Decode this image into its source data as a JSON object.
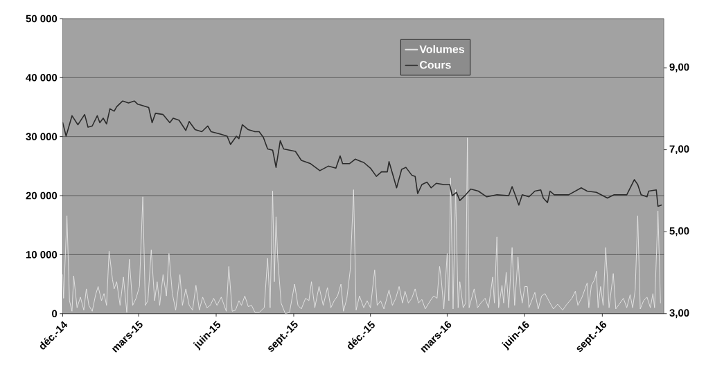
{
  "chart_data": {
    "type": "line",
    "xlim": [
      "2014-12-01",
      "2016-11-13"
    ],
    "xticks": [
      {
        "value": "2014-12-01",
        "label": "déc.-14"
      },
      {
        "value": "2015-03-01",
        "label": "mars-15"
      },
      {
        "value": "2015-06-01",
        "label": "juin-15"
      },
      {
        "value": "2015-09-01",
        "label": "sept.-15"
      },
      {
        "value": "2015-12-01",
        "label": "déc.-15"
      },
      {
        "value": "2016-03-01",
        "label": "mars-16"
      },
      {
        "value": "2016-06-01",
        "label": "juin-16"
      },
      {
        "value": "2016-09-01",
        "label": "sept.-16"
      }
    ],
    "ylim": [
      0,
      50000
    ],
    "yticks": [
      {
        "value": 0,
        "label": "0"
      },
      {
        "value": 10000,
        "label": "10 000"
      },
      {
        "value": 20000,
        "label": "20 000"
      },
      {
        "value": 30000,
        "label": "30 000"
      },
      {
        "value": 40000,
        "label": "40 000"
      },
      {
        "value": 50000,
        "label": "50 000"
      }
    ],
    "y2lim": [
      3,
      10.2
    ],
    "y2ticks": [
      {
        "value": 3,
        "label": "3,00"
      },
      {
        "value": 5,
        "label": "5,00"
      },
      {
        "value": 7,
        "label": "7,00"
      },
      {
        "value": 9,
        "label": "9,00"
      }
    ],
    "grid": "y",
    "legend": "top",
    "series": [
      {
        "name": "Volumes",
        "color": "#e6e6e6",
        "axis": "y",
        "x": [
          "2014-12-01",
          "2014-12-02",
          "2014-12-06",
          "2014-12-09",
          "2014-12-12",
          "2014-12-14",
          "2014-12-18",
          "2014-12-22",
          "2014-12-26",
          "2014-12-29",
          "2015-01-01",
          "2015-01-05",
          "2015-01-09",
          "2015-01-12",
          "2015-01-16",
          "2015-01-19",
          "2015-01-22",
          "2015-01-25",
          "2015-01-29",
          "2015-01-31",
          "2015-02-03",
          "2015-02-07",
          "2015-02-11",
          "2015-02-15",
          "2015-02-18",
          "2015-02-22",
          "2015-02-26",
          "2015-03-02",
          "2015-03-06",
          "2015-03-09",
          "2015-03-12",
          "2015-03-16",
          "2015-03-20",
          "2015-03-23",
          "2015-03-26",
          "2015-03-30",
          "2015-04-03",
          "2015-04-06",
          "2015-04-10",
          "2015-04-14",
          "2015-04-19",
          "2015-04-22",
          "2015-04-26",
          "2015-04-30",
          "2015-05-04",
          "2015-05-08",
          "2015-05-12",
          "2015-05-16",
          "2015-05-21",
          "2015-05-25",
          "2015-05-29",
          "2015-06-02",
          "2015-06-07",
          "2015-06-13",
          "2015-06-16",
          "2015-06-20",
          "2015-06-24",
          "2015-06-28",
          "2015-07-01",
          "2015-07-05",
          "2015-07-09",
          "2015-07-13",
          "2015-07-17",
          "2015-07-22",
          "2015-07-28",
          "2015-08-01",
          "2015-08-04",
          "2015-08-07",
          "2015-08-09",
          "2015-08-11",
          "2015-08-13",
          "2015-08-17",
          "2015-08-22",
          "2015-08-27",
          "2015-09-02",
          "2015-09-06",
          "2015-09-10",
          "2015-09-15",
          "2015-09-19",
          "2015-09-22",
          "2015-09-26",
          "2015-10-01",
          "2015-10-06",
          "2015-10-11",
          "2015-10-15",
          "2015-10-19",
          "2015-10-23",
          "2015-10-27",
          "2015-10-30",
          "2015-11-03",
          "2015-11-07",
          "2015-11-11",
          "2015-11-14",
          "2015-11-18",
          "2015-11-23",
          "2015-11-27",
          "2015-12-01",
          "2015-12-06",
          "2015-12-09",
          "2015-12-13",
          "2015-12-17",
          "2015-12-23",
          "2015-12-27",
          "2015-12-31",
          "2016-01-04",
          "2016-01-08",
          "2016-01-11",
          "2016-01-15",
          "2016-01-19",
          "2016-01-23",
          "2016-01-27",
          "2016-01-31",
          "2016-02-04",
          "2016-02-10",
          "2016-02-14",
          "2016-02-18",
          "2016-02-21",
          "2016-02-23",
          "2016-02-26",
          "2016-03-01",
          "2016-03-03",
          "2016-03-05",
          "2016-03-08",
          "2016-03-11",
          "2016-03-14",
          "2016-03-16",
          "2016-03-20",
          "2016-03-23",
          "2016-03-25",
          "2016-03-27",
          "2016-04-02",
          "2016-04-06",
          "2016-04-10",
          "2016-04-15",
          "2016-04-19",
          "2016-04-24",
          "2016-04-26",
          "2016-04-29",
          "2016-05-01",
          "2016-05-05",
          "2016-05-07",
          "2016-05-10",
          "2016-05-13",
          "2016-05-17",
          "2016-05-20",
          "2016-05-24",
          "2016-05-26",
          "2016-05-29",
          "2016-06-01",
          "2016-06-04",
          "2016-06-06",
          "2016-06-13",
          "2016-06-17",
          "2016-06-21",
          "2016-06-25",
          "2016-07-01",
          "2016-07-05",
          "2016-07-10",
          "2016-07-16",
          "2016-07-21",
          "2016-07-27",
          "2016-07-31",
          "2016-08-03",
          "2016-08-08",
          "2016-08-14",
          "2016-08-16",
          "2016-08-19",
          "2016-08-23",
          "2016-08-25",
          "2016-08-27",
          "2016-08-30",
          "2016-09-02",
          "2016-09-05",
          "2016-09-09",
          "2016-09-14",
          "2016-09-17",
          "2016-09-21",
          "2016-09-26",
          "2016-09-30",
          "2016-10-04",
          "2016-10-07",
          "2016-10-10",
          "2016-10-13",
          "2016-10-16",
          "2016-10-20",
          "2016-10-24",
          "2016-10-28",
          "2016-10-31",
          "2016-11-02",
          "2016-11-06",
          "2016-11-09"
        ],
        "values": [
          6600,
          2600,
          16600,
          2200,
          400,
          6400,
          1000,
          2800,
          600,
          4200,
          1400,
          400,
          3200,
          4600,
          2200,
          3400,
          1400,
          10600,
          5800,
          4200,
          5400,
          1400,
          6200,
          200,
          9200,
          1400,
          2600,
          4600,
          19800,
          1400,
          2200,
          10800,
          2200,
          5400,
          1400,
          6600,
          3000,
          10200,
          3400,
          600,
          6600,
          1400,
          4200,
          1400,
          600,
          4800,
          600,
          2800,
          1000,
          1400,
          2600,
          1400,
          2800,
          400,
          8000,
          400,
          600,
          2200,
          1400,
          3000,
          1200,
          1400,
          200,
          200,
          1000,
          9400,
          1000,
          20800,
          5400,
          16400,
          9400,
          1800,
          0,
          200,
          5000,
          1400,
          800,
          2600,
          2200,
          5400,
          1000,
          4600,
          1400,
          4400,
          1000,
          2200,
          3000,
          5000,
          400,
          2600,
          7400,
          21000,
          600,
          3000,
          1000,
          2200,
          1000,
          7400,
          1400,
          2200,
          800,
          4000,
          1400,
          2600,
          4600,
          1800,
          3800,
          1800,
          2600,
          4200,
          1800,
          2400,
          800,
          2200,
          3000,
          2600,
          8000,
          5800,
          800,
          10200,
          2200,
          23000,
          800,
          21000,
          1000,
          5400,
          1000,
          1800,
          29800,
          1000,
          4200,
          1000,
          1800,
          2600,
          1000,
          6200,
          1800,
          13000,
          1000,
          4800,
          1800,
          7000,
          1000,
          11200,
          1400,
          9600,
          4800,
          1800,
          4600,
          4600,
          1000,
          3600,
          800,
          3000,
          3400,
          1800,
          800,
          1600,
          600,
          1600,
          2600,
          3800,
          1400,
          2800,
          5200,
          1000,
          4800,
          5800,
          7200,
          1000,
          4600,
          1400,
          11200,
          1000,
          6800,
          800,
          1600,
          2600,
          1000,
          3200,
          1000,
          4000,
          16600,
          800,
          2200,
          2800,
          1000,
          3400,
          1000,
          17400,
          1800
        ]
      },
      {
        "name": "Cours",
        "color": "#2b2b2b",
        "axis": "y2",
        "x": [
          "2014-12-01",
          "2014-12-05",
          "2014-12-12",
          "2014-12-19",
          "2014-12-27",
          "2014-12-31",
          "2015-01-05",
          "2015-01-11",
          "2015-01-14",
          "2015-01-18",
          "2015-01-22",
          "2015-01-26",
          "2015-01-31",
          "2015-02-03",
          "2015-02-10",
          "2015-02-17",
          "2015-02-24",
          "2015-02-28",
          "2015-03-05",
          "2015-03-13",
          "2015-03-17",
          "2015-03-21",
          "2015-03-30",
          "2015-04-07",
          "2015-04-11",
          "2015-04-18",
          "2015-04-26",
          "2015-04-30",
          "2015-05-07",
          "2015-05-15",
          "2015-05-22",
          "2015-05-26",
          "2015-06-06",
          "2015-06-14",
          "2015-06-18",
          "2015-06-25",
          "2015-06-28",
          "2015-07-02",
          "2015-07-09",
          "2015-07-17",
          "2015-07-22",
          "2015-07-27",
          "2015-08-01",
          "2015-08-07",
          "2015-08-11",
          "2015-08-16",
          "2015-08-20",
          "2015-09-03",
          "2015-09-10",
          "2015-09-21",
          "2015-10-02",
          "2015-10-12",
          "2015-10-21",
          "2015-10-26",
          "2015-10-29",
          "2015-11-06",
          "2015-11-13",
          "2015-11-20",
          "2015-11-23",
          "2015-12-01",
          "2015-12-08",
          "2015-12-14",
          "2015-12-21",
          "2015-12-23",
          "2015-12-27",
          "2016-01-01",
          "2016-01-07",
          "2016-01-12",
          "2016-01-19",
          "2016-01-23",
          "2016-01-26",
          "2016-01-31",
          "2016-02-06",
          "2016-02-11",
          "2016-02-17",
          "2016-02-26",
          "2016-03-04",
          "2016-03-07",
          "2016-03-12",
          "2016-03-16",
          "2016-03-23",
          "2016-03-29",
          "2016-04-07",
          "2016-04-17",
          "2016-04-29",
          "2016-05-13",
          "2016-05-17",
          "2016-05-21",
          "2016-05-25",
          "2016-05-29",
          "2016-06-06",
          "2016-06-13",
          "2016-06-20",
          "2016-06-23",
          "2016-06-28",
          "2016-07-01",
          "2016-07-06",
          "2016-07-23",
          "2016-08-07",
          "2016-08-14",
          "2016-08-25",
          "2016-09-07",
          "2016-09-15",
          "2016-09-30",
          "2016-10-09",
          "2016-10-13",
          "2016-10-17",
          "2016-10-24",
          "2016-10-26",
          "2016-11-04",
          "2016-11-06",
          "2016-11-10"
        ],
        "values": [
          7.66,
          7.33,
          7.83,
          7.61,
          7.86,
          7.55,
          7.58,
          7.83,
          7.66,
          7.77,
          7.63,
          8.0,
          7.94,
          8.05,
          8.19,
          8.14,
          8.19,
          8.11,
          8.08,
          8.03,
          7.66,
          7.89,
          7.86,
          7.66,
          7.77,
          7.72,
          7.47,
          7.69,
          7.49,
          7.44,
          7.58,
          7.44,
          7.38,
          7.33,
          7.13,
          7.33,
          7.27,
          7.61,
          7.49,
          7.44,
          7.44,
          7.3,
          7.02,
          6.99,
          6.57,
          7.22,
          7.02,
          6.96,
          6.74,
          6.66,
          6.49,
          6.6,
          6.55,
          6.85,
          6.66,
          6.66,
          6.77,
          6.71,
          6.69,
          6.55,
          6.35,
          6.46,
          6.46,
          6.71,
          6.43,
          6.07,
          6.52,
          6.57,
          6.38,
          6.35,
          5.93,
          6.15,
          6.21,
          6.07,
          6.18,
          6.15,
          6.15,
          5.88,
          5.96,
          5.76,
          5.9,
          6.04,
          5.99,
          5.85,
          5.9,
          5.88,
          6.1,
          5.88,
          5.65,
          5.9,
          5.85,
          5.99,
          6.02,
          5.82,
          5.71,
          5.99,
          5.9,
          5.9,
          6.07,
          5.99,
          5.96,
          5.82,
          5.9,
          5.9,
          6.27,
          6.15,
          5.9,
          5.85,
          5.99,
          6.02,
          5.62,
          5.65
        ]
      }
    ]
  }
}
